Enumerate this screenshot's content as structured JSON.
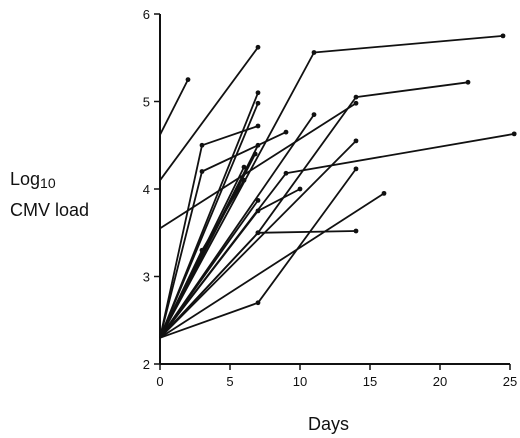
{
  "chart_data": {
    "type": "line",
    "title": "",
    "ylabel": {
      "line1_base": "Log",
      "line1_sub": "10",
      "line2": "CMV load"
    },
    "xlabel": "Days",
    "xlim": [
      0,
      25
    ],
    "ylim": [
      2,
      6
    ],
    "xticks": [
      0,
      5,
      10,
      15,
      20,
      25
    ],
    "yticks": [
      2,
      3,
      4,
      5,
      6
    ],
    "grid": false,
    "legend": "none",
    "series": [
      {
        "points": [
          [
            0,
            4.62
          ],
          [
            2,
            5.25
          ]
        ]
      },
      {
        "points": [
          [
            0,
            4.1
          ],
          [
            7,
            5.62
          ]
        ]
      },
      {
        "points": [
          [
            0,
            3.55
          ],
          [
            14,
            4.98
          ]
        ]
      },
      {
        "points": [
          [
            0,
            2.3
          ],
          [
            11,
            5.56
          ],
          [
            24.5,
            5.75
          ]
        ]
      },
      {
        "points": [
          [
            0,
            2.3
          ],
          [
            7,
            3.5
          ],
          [
            14,
            5.05
          ],
          [
            22,
            5.22
          ]
        ]
      },
      {
        "points": [
          [
            0,
            2.3
          ],
          [
            9,
            4.18
          ],
          [
            25.3,
            4.63
          ]
        ]
      },
      {
        "points": [
          [
            0,
            2.3
          ],
          [
            7,
            5.1
          ]
        ]
      },
      {
        "points": [
          [
            0,
            2.3
          ],
          [
            7,
            4.98
          ]
        ]
      },
      {
        "points": [
          [
            0,
            2.3
          ],
          [
            3,
            4.5
          ],
          [
            7,
            4.72
          ]
        ]
      },
      {
        "points": [
          [
            0,
            2.3
          ],
          [
            3,
            4.2
          ],
          [
            9,
            4.65
          ]
        ]
      },
      {
        "points": [
          [
            0,
            2.3
          ],
          [
            7,
            4.5
          ]
        ]
      },
      {
        "points": [
          [
            0,
            2.3
          ],
          [
            11,
            4.85
          ]
        ]
      },
      {
        "points": [
          [
            0,
            2.3
          ],
          [
            7,
            3.87
          ]
        ]
      },
      {
        "points": [
          [
            0,
            2.3
          ],
          [
            7,
            3.75
          ],
          [
            10,
            4.0
          ]
        ]
      },
      {
        "points": [
          [
            0,
            2.3
          ],
          [
            14,
            4.55
          ]
        ]
      },
      {
        "points": [
          [
            0,
            2.3
          ],
          [
            7,
            2.7
          ],
          [
            14,
            4.23
          ]
        ]
      },
      {
        "points": [
          [
            0,
            2.3
          ],
          [
            7,
            3.5
          ],
          [
            14,
            3.52
          ]
        ]
      },
      {
        "points": [
          [
            0,
            2.3
          ],
          [
            16,
            3.95
          ]
        ]
      },
      {
        "points": [
          [
            0,
            2.3
          ],
          [
            6.8,
            4.4
          ]
        ]
      },
      {
        "points": [
          [
            0,
            2.3
          ],
          [
            6,
            4.25
          ]
        ]
      },
      {
        "points": [
          [
            0,
            2.3
          ],
          [
            3,
            3.3
          ],
          [
            6,
            4.1
          ]
        ]
      }
    ]
  }
}
